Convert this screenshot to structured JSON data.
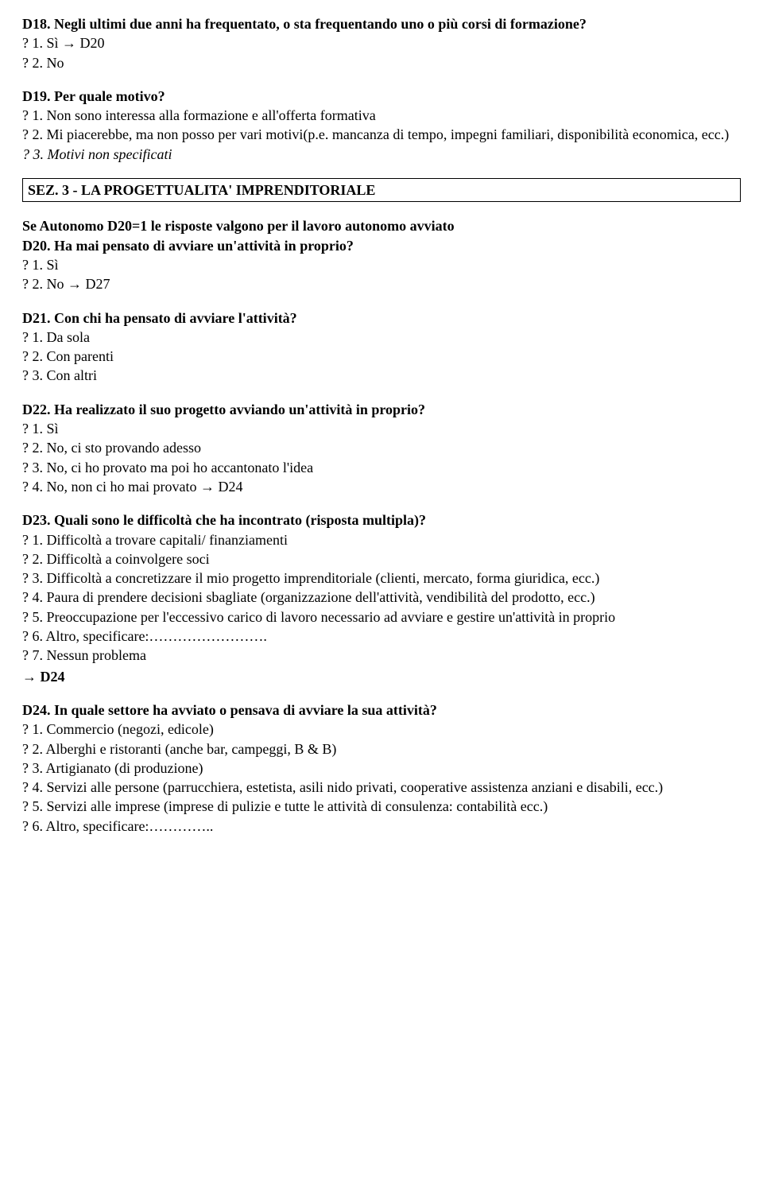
{
  "d18": {
    "title": "D18. Negli ultimi due anni ha frequentato, o sta frequentando uno o più corsi di formazione?",
    "o1": "? 1. Sì → D20",
    "o2": "? 2. No"
  },
  "d19": {
    "title": "D19. Per quale motivo?",
    "o1": "? 1. Non sono interessa alla formazione e all'offerta formativa",
    "o2": "? 2. Mi piacerebbe, ma non posso per vari motivi(p.e. mancanza di tempo, impegni familiari, disponibilità economica, ecc.)",
    "o3": "? 3. Motivi non specificati"
  },
  "section3": "SEZ. 3 - LA PROGETTUALITA' IMPRENDITORIALE",
  "autonomo_note": "Se Autonomo D20=1 le risposte valgono per il lavoro autonomo avviato",
  "d20": {
    "title": "D20. Ha mai pensato di avviare un'attività in proprio?",
    "o1": "? 1. Sì",
    "o2": "? 2. No → D27"
  },
  "d21": {
    "title": "D21. Con chi ha pensato di avviare l'attività?",
    "o1": "? 1. Da sola",
    "o2": "? 2. Con parenti",
    "o3": "? 3. Con altri"
  },
  "d22": {
    "title": "D22. Ha realizzato il suo progetto avviando un'attività in proprio?",
    "o1": "? 1. Sì",
    "o2": "? 2. No, ci sto provando adesso",
    "o3": "? 3. No, ci ho provato ma poi ho accantonato l'idea",
    "o4": "? 4. No, non ci ho mai provato → D24"
  },
  "d23": {
    "title": "D23. Quali sono le difficoltà che ha incontrato (risposta multipla)?",
    "o1": "? 1. Difficoltà a trovare capitali/ finanziamenti",
    "o2": "? 2. Difficoltà a coinvolgere soci",
    "o3": "? 3. Difficoltà a concretizzare il mio progetto imprenditoriale (clienti, mercato, forma giuridica, ecc.)",
    "o4": "? 4. Paura di prendere decisioni sbagliate (organizzazione dell'attività, vendibilità del prodotto, ecc.)",
    "o5": "? 5. Preoccupazione per l'eccessivo carico di lavoro necessario ad avviare e gestire un'attività in proprio",
    "o6": "? 6. Altro, specificare:…………………….",
    "o7": "? 7. Nessun problema",
    "goto": "→ D24"
  },
  "d24": {
    "title": "D24. In quale settore ha avviato o pensava di avviare la sua attività?",
    "o1": "? 1. Commercio (negozi, edicole)",
    "o2": "? 2. Alberghi e ristoranti (anche bar, campeggi, B & B)",
    "o3": "? 3. Artigianato (di produzione)",
    "o4": "? 4. Servizi alle persone (parrucchiera, estetista, asili nido privati, cooperative assistenza anziani e disabili, ecc.)",
    "o5": "? 5. Servizi alle imprese (imprese di pulizie e tutte le attività di consulenza: contabilità ecc.)",
    "o6": "? 6. Altro, specificare:………….."
  }
}
